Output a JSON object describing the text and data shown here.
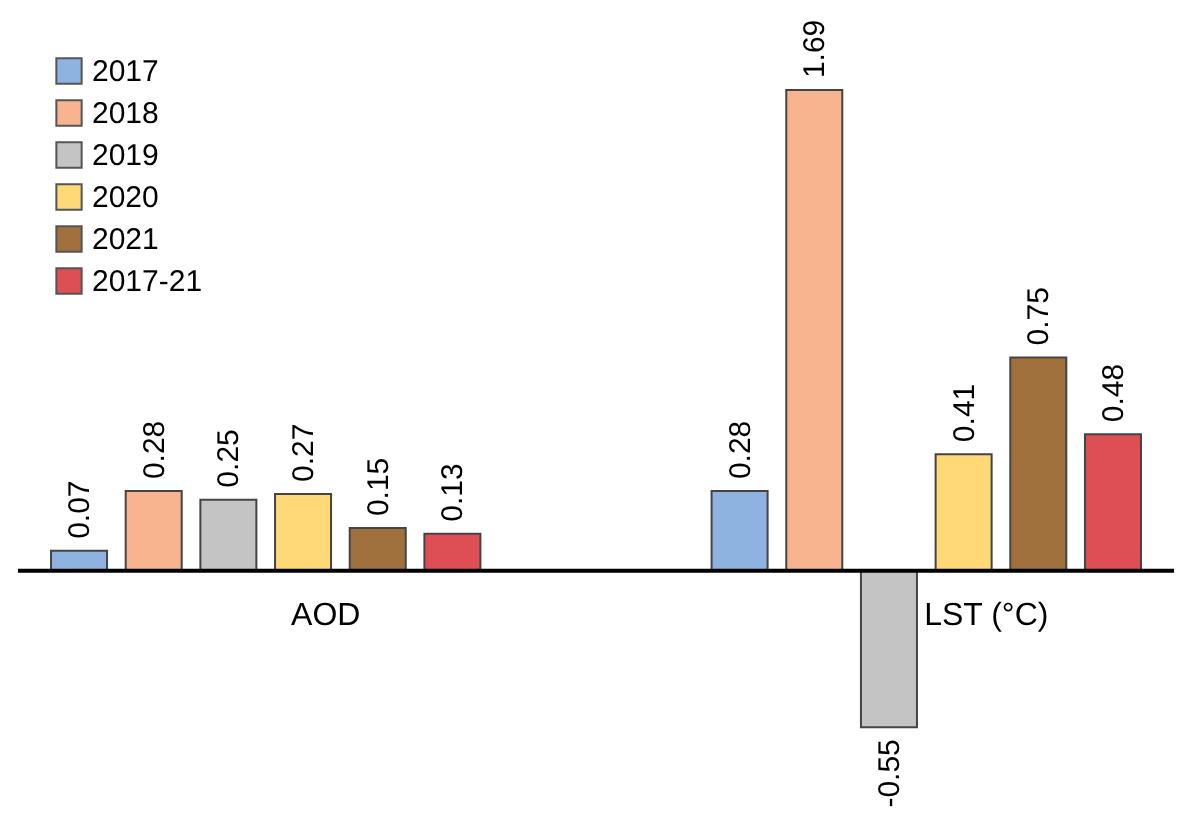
{
  "chart_data": {
    "type": "bar",
    "categories": [
      "AOD",
      "LST (°C)"
    ],
    "series": [
      {
        "name": "2017",
        "color": "#8fb3e0",
        "values": [
          0.07,
          0.28
        ]
      },
      {
        "name": "2018",
        "color": "#f7b48f",
        "values": [
          0.28,
          1.69
        ]
      },
      {
        "name": "2019",
        "color": "#c4c4c4",
        "values": [
          0.25,
          -0.55
        ]
      },
      {
        "name": "2020",
        "color": "#ffd877",
        "values": [
          0.27,
          0.41
        ]
      },
      {
        "name": "2021",
        "color": "#a0713c",
        "values": [
          0.15,
          0.75
        ]
      },
      {
        "name": "2017-21",
        "color": "#dd4f55",
        "values": [
          0.13,
          0.48
        ]
      }
    ],
    "data_labels": true,
    "legend": "top left"
  }
}
